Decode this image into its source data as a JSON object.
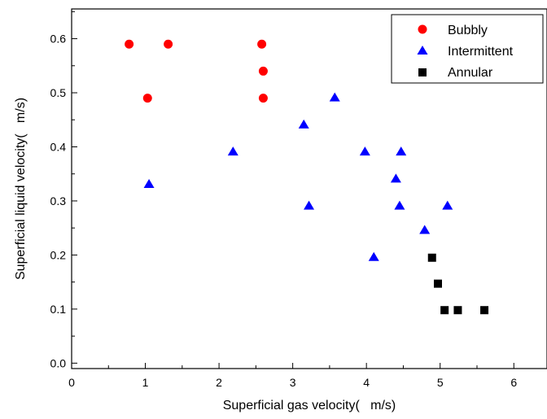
{
  "chart_data": {
    "type": "scatter",
    "title": "",
    "xlabel": "Superficial gas velocity(   m/s)",
    "ylabel": "Superficial liquid velocity(   m/s)",
    "xlim": [
      0,
      6.45
    ],
    "ylim": [
      -0.01,
      0.655
    ],
    "xticks": [
      0,
      1,
      2,
      3,
      4,
      5,
      6
    ],
    "xtick_labels": [
      "0",
      "1",
      "2",
      "3",
      "4",
      "5",
      "6"
    ],
    "yticks": [
      0.0,
      0.1,
      0.2,
      0.3,
      0.4,
      0.5,
      0.6
    ],
    "ytick_labels": [
      "0.0",
      "0.1",
      "0.2",
      "0.3",
      "0.4",
      "0.5",
      "0.6"
    ],
    "grid": false,
    "legend_position": "top-right",
    "series": [
      {
        "name": "Bubbly",
        "marker": "circle",
        "color": "#ff0000",
        "points": [
          [
            0.78,
            0.59
          ],
          [
            1.31,
            0.59
          ],
          [
            2.58,
            0.59
          ],
          [
            2.6,
            0.54
          ],
          [
            1.03,
            0.49
          ],
          [
            2.6,
            0.49
          ]
        ]
      },
      {
        "name": "Intermittent",
        "marker": "triangle",
        "color": "#0000ff",
        "points": [
          [
            1.05,
            0.33
          ],
          [
            2.19,
            0.39
          ],
          [
            3.15,
            0.44
          ],
          [
            3.22,
            0.29
          ],
          [
            3.57,
            0.49
          ],
          [
            3.98,
            0.39
          ],
          [
            4.1,
            0.195
          ],
          [
            4.4,
            0.34
          ],
          [
            4.45,
            0.29
          ],
          [
            4.47,
            0.39
          ],
          [
            4.79,
            0.245
          ],
          [
            5.1,
            0.29
          ]
        ]
      },
      {
        "name": "Annular",
        "marker": "square",
        "color": "#000000",
        "points": [
          [
            4.89,
            0.195
          ],
          [
            4.97,
            0.147
          ],
          [
            5.06,
            0.098
          ],
          [
            5.24,
            0.098
          ],
          [
            5.6,
            0.098
          ]
        ]
      }
    ]
  }
}
